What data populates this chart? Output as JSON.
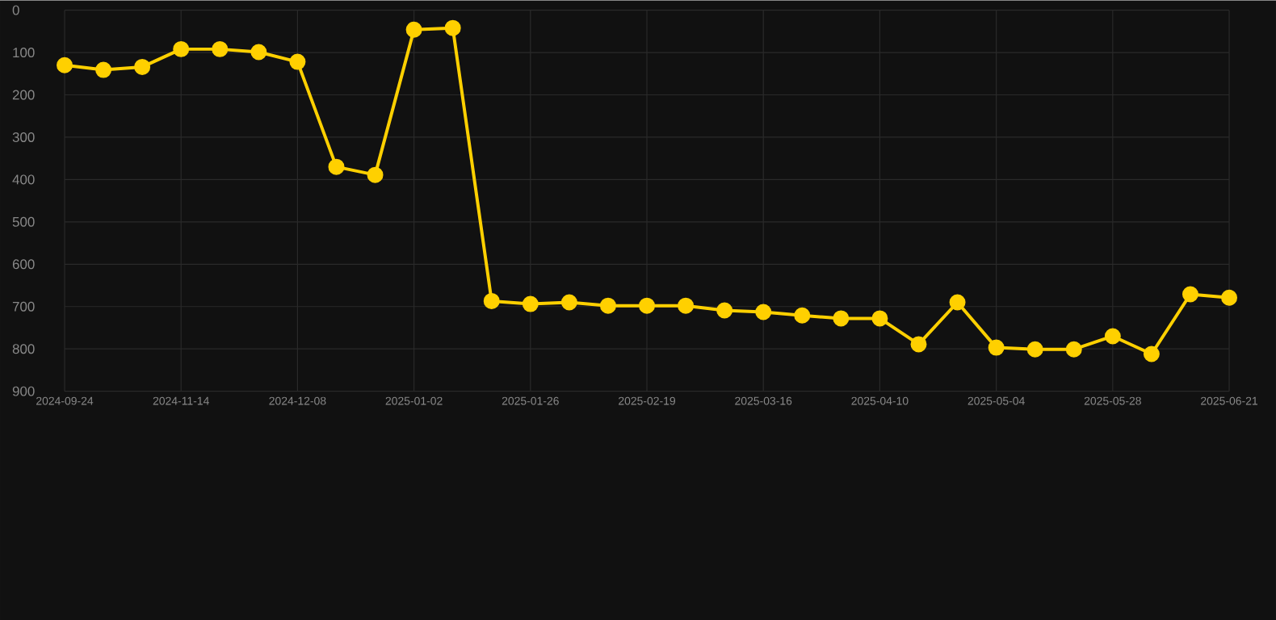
{
  "chart_data": {
    "type": "line",
    "categories": [
      "2024-09-24",
      null,
      null,
      "2024-11-14",
      null,
      null,
      "2024-12-08",
      null,
      null,
      "2025-01-02",
      null,
      null,
      "2025-01-26",
      null,
      null,
      "2025-02-19",
      null,
      null,
      "2025-03-16",
      null,
      null,
      "2025-04-10",
      null,
      null,
      "2025-05-04",
      null,
      null,
      "2025-05-28",
      null,
      null,
      "2025-06-21"
    ],
    "series": [
      {
        "color": "#ffd000",
        "values": [
          130,
          141,
          134,
          92,
          92,
          99,
          122,
          370,
          389,
          46,
          42,
          687,
          694,
          690,
          698,
          698,
          698,
          709,
          713,
          721,
          728,
          728,
          789,
          690,
          797,
          801,
          801,
          770,
          812,
          671,
          679
        ]
      }
    ],
    "ylim": [
      900,
      0
    ],
    "yticks": [
      0,
      100,
      200,
      300,
      400,
      500,
      600,
      700,
      800,
      900
    ],
    "grid": true,
    "marker": "circle",
    "line_style": "solid"
  }
}
